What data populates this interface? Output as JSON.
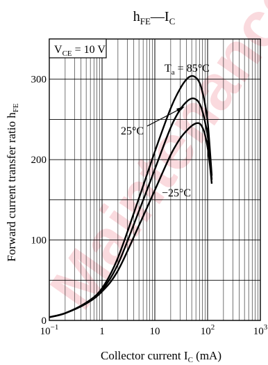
{
  "watermark": "Maintenance",
  "colors": {
    "curve": "#000000",
    "grid": "#000000",
    "watermark": "#e0001b"
  },
  "chart_data": {
    "type": "line",
    "title": {
      "main": "h",
      "main_sub": "FE",
      "dash": "—",
      "tail": "I",
      "tail_sub": "C"
    },
    "xlabel": {
      "pre": "Collector current  I",
      "sub": "C",
      "post": "  (mA)"
    },
    "ylabel": {
      "pre": "Forward current transfer ratio  h",
      "sub": "FE"
    },
    "condition": {
      "pre": "V",
      "sub": "CE",
      "post": " = 10 V"
    },
    "x_scale": "log",
    "xlim": [
      0.1,
      1000
    ],
    "ylim": [
      0,
      350
    ],
    "grid": true,
    "x_ticks": [
      {
        "value": 0.1,
        "base": "10",
        "exp": "−1"
      },
      {
        "value": 1,
        "base": "1",
        "exp": ""
      },
      {
        "value": 10,
        "base": "10",
        "exp": ""
      },
      {
        "value": 100,
        "base": "10",
        "exp": "2"
      },
      {
        "value": 1000,
        "base": "10",
        "exp": "3"
      }
    ],
    "y_ticks": [
      {
        "value": 0,
        "label": "0"
      },
      {
        "value": 100,
        "label": "100"
      },
      {
        "value": 200,
        "label": "200"
      },
      {
        "value": 300,
        "label": "300"
      }
    ],
    "series": [
      {
        "label": {
          "pre": "T",
          "sub": "a",
          "post": " = 85°C"
        },
        "x": [
          0.1,
          0.2,
          0.5,
          1,
          2,
          5,
          10,
          20,
          30,
          40,
          50,
          60,
          70,
          80,
          90,
          100,
          110,
          120
        ],
        "y": [
          4,
          9,
          22,
          40,
          78,
          152,
          210,
          264,
          288,
          300,
          304,
          302,
          296,
          284,
          268,
          248,
          215,
          180
        ]
      },
      {
        "label": {
          "pre": "25°C",
          "sub": "",
          "post": ""
        },
        "x": [
          0.1,
          0.2,
          0.5,
          1,
          2,
          5,
          10,
          20,
          30,
          40,
          50,
          60,
          70,
          80,
          90,
          100,
          110,
          120
        ],
        "y": [
          4,
          9,
          22,
          38,
          70,
          136,
          188,
          240,
          262,
          272,
          276,
          275,
          270,
          260,
          246,
          230,
          205,
          175
        ]
      },
      {
        "label": {
          "pre": "−25°C",
          "sub": "",
          "post": ""
        },
        "x": [
          0.1,
          0.2,
          0.5,
          1,
          2,
          5,
          10,
          20,
          30,
          40,
          50,
          60,
          70,
          80,
          90,
          100,
          110,
          120
        ],
        "y": [
          4,
          9,
          21,
          36,
          62,
          118,
          162,
          206,
          226,
          236,
          242,
          245,
          245,
          240,
          230,
          215,
          195,
          170
        ]
      }
    ]
  }
}
